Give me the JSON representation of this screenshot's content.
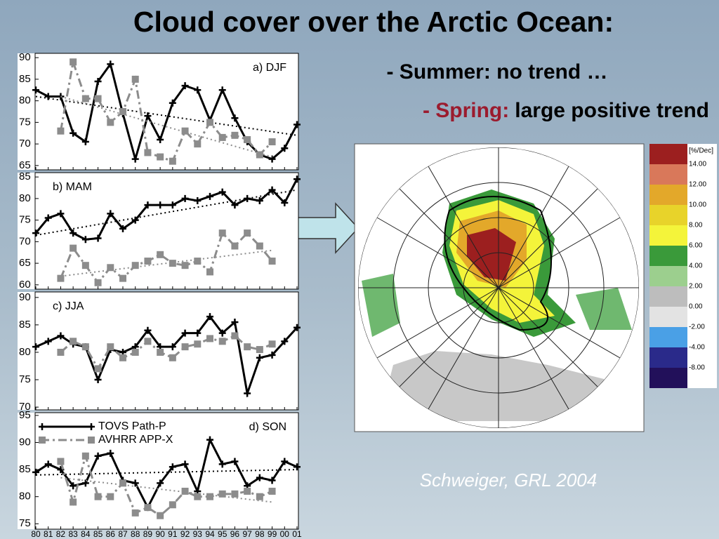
{
  "title": "Cloud cover over the Arctic Ocean:",
  "bullets": {
    "summer": "- Summer: no trend …",
    "spring_label": "- Spring:",
    "spring_text": "large positive trend"
  },
  "citation": "Schweiger, GRL 2004",
  "map_legend": {
    "title": "[%/Dec]",
    "labels": [
      "14.00",
      "12.00",
      "10.00",
      "8.00",
      "6.00",
      "4.00",
      "2.00",
      "0.00",
      "-2.00",
      "-4.00",
      "-8.00"
    ],
    "colors": [
      "#9c1f1f",
      "#d9785a",
      "#e3a82a",
      "#e8d32a",
      "#f4f43a",
      "#3a9a3a",
      "#9ccf8e",
      "#bdbdbd",
      "#e3e3e3",
      "#4aa0e6",
      "#2a2a8a",
      "#22105a"
    ]
  },
  "chart_data": [
    {
      "type": "line",
      "title": "a) DJF",
      "ylim": [
        64,
        91
      ],
      "yticks": [
        65,
        70,
        75,
        80,
        85,
        90
      ],
      "series": [
        {
          "color": "#000000",
          "values": [
            82.5,
            81,
            81,
            72.5,
            70.5,
            84.5,
            88.5,
            77,
            66.5,
            76.5,
            71,
            79.5,
            83.5,
            82.5,
            75.5,
            82.5,
            76,
            70.5,
            67.5,
            66.5,
            69,
            74.5
          ],
          "trend": [
            81,
            72
          ]
        },
        {
          "color": "#8c8c8c",
          "values": [
            null,
            null,
            73,
            89,
            80.5,
            80.5,
            75,
            77.5,
            85,
            68,
            67,
            66,
            73,
            70,
            75,
            71.5,
            72,
            71,
            67.5,
            70.5,
            null,
            null
          ],
          "trend": [
            81,
            67
          ]
        }
      ]
    },
    {
      "type": "line",
      "title": "b) MAM",
      "ylim": [
        59,
        86
      ],
      "yticks": [
        60,
        65,
        70,
        75,
        80,
        85
      ],
      "series": [
        {
          "color": "#000000",
          "values": [
            72,
            75.5,
            76.5,
            72,
            70.5,
            70.8,
            76.5,
            73,
            75,
            78.5,
            78.5,
            78.5,
            80,
            79.5,
            80.5,
            81.5,
            78.5,
            80,
            79.5,
            82,
            79,
            84.5
          ],
          "trend": [
            71.5,
            82
          ]
        },
        {
          "color": "#8c8c8c",
          "values": [
            null,
            null,
            61.5,
            68.5,
            64.5,
            60.5,
            64,
            61.5,
            64.5,
            65.5,
            67,
            65,
            64.5,
            65.5,
            63,
            72,
            69,
            72,
            69,
            65.5,
            null,
            null
          ],
          "trend": [
            62,
            68
          ]
        }
      ]
    },
    {
      "type": "line",
      "title": "c) JJA",
      "ylim": [
        69.5,
        91
      ],
      "yticks": [
        70,
        75,
        80,
        85,
        90
      ],
      "series": [
        {
          "color": "#000000",
          "values": [
            81,
            82,
            83,
            81.5,
            81,
            75,
            80.5,
            80,
            81,
            84,
            81,
            81,
            83.5,
            83.5,
            86.5,
            83.5,
            85.5,
            72.5,
            79,
            79.5,
            82,
            84.5
          ]
        },
        {
          "color": "#8c8c8c",
          "values": [
            null,
            null,
            80,
            82,
            81,
            77,
            81,
            79,
            80,
            82,
            80,
            79,
            81,
            81.5,
            82.5,
            82,
            83,
            81,
            80.5,
            81.5,
            null,
            null
          ]
        }
      ]
    },
    {
      "type": "line",
      "title": "d) SON",
      "ylim": [
        74,
        95.5
      ],
      "yticks": [
        75,
        80,
        85,
        90,
        95
      ],
      "categories": [
        "80",
        "81",
        "82",
        "83",
        "84",
        "85",
        "86",
        "87",
        "88",
        "89",
        "90",
        "91",
        "92",
        "93",
        "94",
        "95",
        "96",
        "97",
        "98",
        "99",
        "00",
        "01"
      ],
      "series": [
        {
          "name": "TOVS Path-P",
          "color": "#000000",
          "values": [
            84.5,
            86,
            85,
            82,
            82.5,
            87.5,
            88,
            83,
            82.5,
            78,
            82.5,
            85.5,
            86,
            81,
            90.5,
            86,
            86.5,
            82,
            83.5,
            83,
            86.5,
            85.5
          ],
          "trend": [
            84,
            85
          ]
        },
        {
          "name": "AVHRR APP-X",
          "color": "#8c8c8c",
          "values": [
            null,
            null,
            86.5,
            79,
            87.5,
            80,
            80,
            82.5,
            77,
            78,
            76.5,
            78.5,
            81,
            80,
            80,
            80.5,
            80.5,
            81,
            80,
            81,
            null,
            null
          ],
          "trend": [
            83.5,
            79
          ]
        }
      ]
    }
  ]
}
